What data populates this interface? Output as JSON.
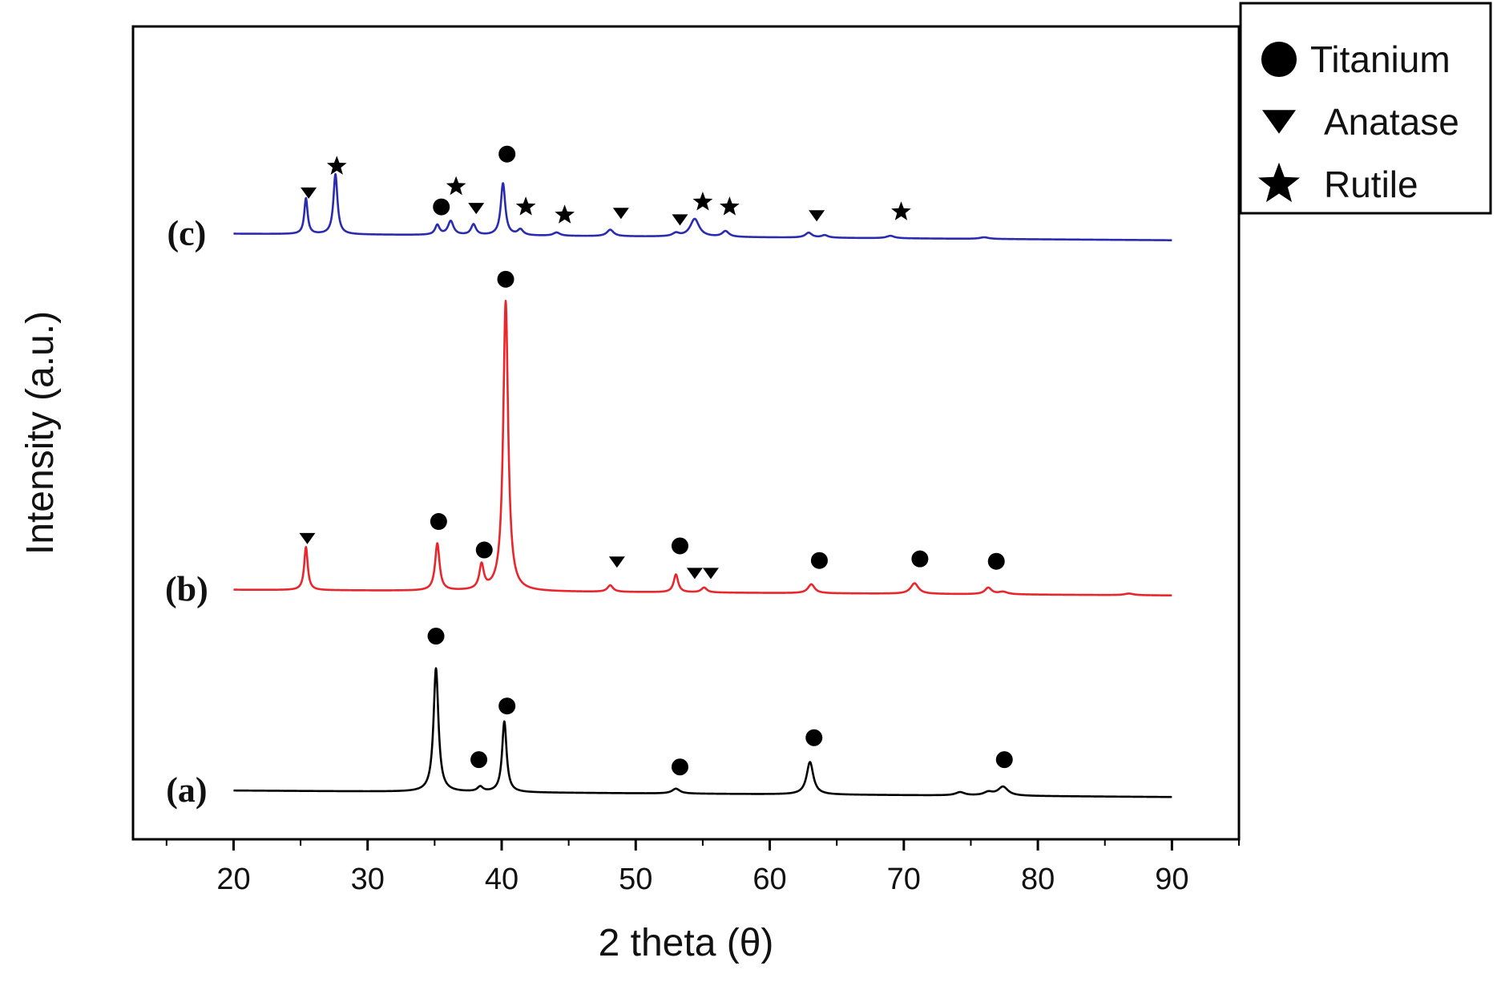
{
  "chart_data": {
    "type": "line",
    "title": "",
    "xlabel": "2 theta (θ)",
    "ylabel": "Intensity (a.u.)",
    "xlim": [
      12.5,
      95
    ],
    "ylim": [
      0,
      1
    ],
    "xticks": [
      20,
      30,
      40,
      50,
      60,
      70,
      80,
      90
    ],
    "grid": false,
    "legend_position": "outside-top-right",
    "legend": [
      {
        "marker": "circle",
        "label": "Titanium"
      },
      {
        "marker": "triangle-down",
        "label": "Anatase"
      },
      {
        "marker": "star",
        "label": "Rutile"
      }
    ],
    "series": [
      {
        "name": "(a)",
        "color": "#000000",
        "x_range": [
          20,
          90
        ],
        "baseline": 0.06,
        "end_baseline": 0.052,
        "peaks": [
          {
            "x": 35.1,
            "h": 0.152,
            "w": 0.22
          },
          {
            "x": 38.4,
            "h": 0.006,
            "w": 0.25
          },
          {
            "x": 40.2,
            "h": 0.087,
            "w": 0.2
          },
          {
            "x": 53.0,
            "h": 0.006,
            "w": 0.35
          },
          {
            "x": 63.0,
            "h": 0.04,
            "w": 0.3
          },
          {
            "x": 74.2,
            "h": 0.004,
            "w": 0.4
          },
          {
            "x": 76.3,
            "h": 0.004,
            "w": 0.4
          },
          {
            "x": 77.4,
            "h": 0.011,
            "w": 0.45
          }
        ],
        "markers": [
          {
            "x": 35.1,
            "y": 0.25,
            "symbol": "circle"
          },
          {
            "x": 38.3,
            "y": 0.098,
            "symbol": "circle"
          },
          {
            "x": 40.4,
            "y": 0.164,
            "symbol": "circle"
          },
          {
            "x": 53.3,
            "y": 0.089,
            "symbol": "circle"
          },
          {
            "x": 63.3,
            "y": 0.125,
            "symbol": "circle"
          },
          {
            "x": 77.5,
            "y": 0.098,
            "symbol": "circle"
          }
        ]
      },
      {
        "name": "(b)",
        "color": "#e8262b",
        "x_range": [
          20,
          90
        ],
        "baseline": 0.307,
        "end_baseline": 0.3,
        "peaks": [
          {
            "x": 25.4,
            "h": 0.053,
            "w": 0.16
          },
          {
            "x": 35.2,
            "h": 0.058,
            "w": 0.2
          },
          {
            "x": 38.5,
            "h": 0.03,
            "w": 0.2
          },
          {
            "x": 40.3,
            "h": 0.357,
            "w": 0.22
          },
          {
            "x": 48.1,
            "h": 0.008,
            "w": 0.25
          },
          {
            "x": 53.0,
            "h": 0.022,
            "w": 0.2
          },
          {
            "x": 55.1,
            "h": 0.006,
            "w": 0.25
          },
          {
            "x": 63.1,
            "h": 0.011,
            "w": 0.3
          },
          {
            "x": 70.8,
            "h": 0.013,
            "w": 0.35
          },
          {
            "x": 76.3,
            "h": 0.008,
            "w": 0.3
          },
          {
            "x": 77.4,
            "h": 0.003,
            "w": 0.4
          },
          {
            "x": 86.8,
            "h": 0.002,
            "w": 0.4
          }
        ],
        "markers": [
          {
            "x": 25.5,
            "y": 0.37,
            "symbol": "triangle"
          },
          {
            "x": 35.3,
            "y": 0.391,
            "symbol": "circle"
          },
          {
            "x": 38.7,
            "y": 0.356,
            "symbol": "circle"
          },
          {
            "x": 40.3,
            "y": 0.689,
            "symbol": "circle"
          },
          {
            "x": 48.6,
            "y": 0.341,
            "symbol": "triangle"
          },
          {
            "x": 53.3,
            "y": 0.361,
            "symbol": "circle"
          },
          {
            "x": 54.4,
            "y": 0.327,
            "symbol": "triangle"
          },
          {
            "x": 55.6,
            "y": 0.327,
            "symbol": "triangle"
          },
          {
            "x": 63.7,
            "y": 0.343,
            "symbol": "circle"
          },
          {
            "x": 71.2,
            "y": 0.345,
            "symbol": "circle"
          },
          {
            "x": 76.9,
            "y": 0.342,
            "symbol": "circle"
          }
        ]
      },
      {
        "name": "(c)",
        "color": "#2b2bb0",
        "x_range": [
          20,
          90
        ],
        "baseline": 0.745,
        "end_baseline": 0.737,
        "peaks": [
          {
            "x": 25.4,
            "h": 0.044,
            "w": 0.15
          },
          {
            "x": 27.6,
            "h": 0.074,
            "w": 0.18
          },
          {
            "x": 35.2,
            "h": 0.012,
            "w": 0.2
          },
          {
            "x": 36.2,
            "h": 0.017,
            "w": 0.25
          },
          {
            "x": 37.9,
            "h": 0.013,
            "w": 0.22
          },
          {
            "x": 40.1,
            "h": 0.064,
            "w": 0.2
          },
          {
            "x": 41.4,
            "h": 0.007,
            "w": 0.25
          },
          {
            "x": 44.1,
            "h": 0.004,
            "w": 0.3
          },
          {
            "x": 48.1,
            "h": 0.008,
            "w": 0.3
          },
          {
            "x": 53.0,
            "h": 0.004,
            "w": 0.3
          },
          {
            "x": 54.4,
            "h": 0.022,
            "w": 0.4
          },
          {
            "x": 56.7,
            "h": 0.007,
            "w": 0.3
          },
          {
            "x": 62.9,
            "h": 0.006,
            "w": 0.3
          },
          {
            "x": 64.1,
            "h": 0.003,
            "w": 0.3
          },
          {
            "x": 69.0,
            "h": 0.003,
            "w": 0.35
          },
          {
            "x": 76.0,
            "h": 0.002,
            "w": 0.4
          }
        ],
        "markers": [
          {
            "x": 25.6,
            "y": 0.795,
            "symbol": "triangle"
          },
          {
            "x": 27.7,
            "y": 0.828,
            "symbol": "star"
          },
          {
            "x": 35.5,
            "y": 0.778,
            "symbol": "circle"
          },
          {
            "x": 36.6,
            "y": 0.803,
            "symbol": "star"
          },
          {
            "x": 38.1,
            "y": 0.776,
            "symbol": "triangle"
          },
          {
            "x": 40.4,
            "y": 0.843,
            "symbol": "circle"
          },
          {
            "x": 41.8,
            "y": 0.778,
            "symbol": "star"
          },
          {
            "x": 44.7,
            "y": 0.768,
            "symbol": "star"
          },
          {
            "x": 48.9,
            "y": 0.77,
            "symbol": "triangle"
          },
          {
            "x": 53.3,
            "y": 0.762,
            "symbol": "triangle"
          },
          {
            "x": 55.0,
            "y": 0.784,
            "symbol": "star"
          },
          {
            "x": 57.0,
            "y": 0.778,
            "symbol": "star"
          },
          {
            "x": 63.5,
            "y": 0.767,
            "symbol": "triangle"
          },
          {
            "x": 69.8,
            "y": 0.772,
            "symbol": "star"
          }
        ]
      }
    ]
  }
}
